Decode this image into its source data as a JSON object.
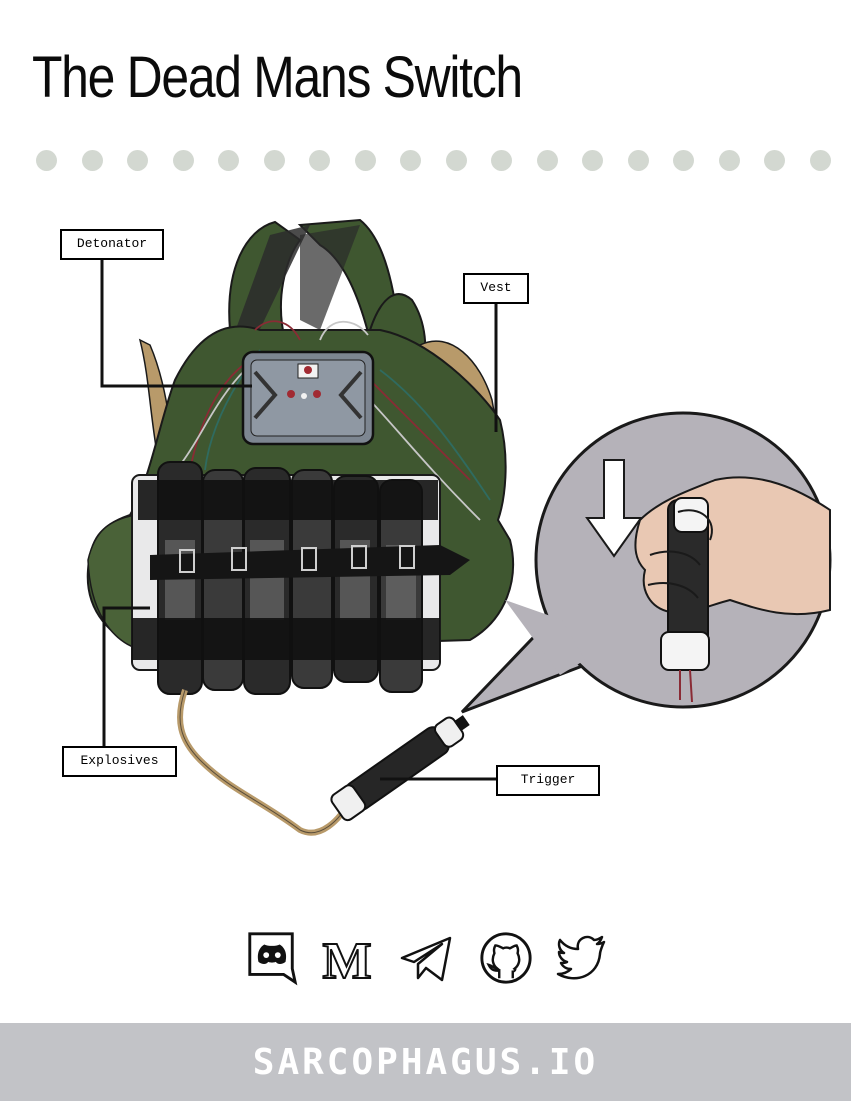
{
  "title": "The Dead Mans Switch",
  "colors": {
    "dot": "#d3d8d1",
    "vest": "#3f5730",
    "footer": "#c2c3c7",
    "bubble": "#b5b2b9"
  },
  "labels": {
    "detonator": "Detonator",
    "vest": "Vest",
    "explosives": "Explosives",
    "trigger": "Trigger"
  },
  "social": [
    {
      "name": "discord-icon"
    },
    {
      "name": "medium-icon"
    },
    {
      "name": "telegram-icon"
    },
    {
      "name": "github-icon"
    },
    {
      "name": "twitter-icon"
    }
  ],
  "footer": {
    "brand": "SARCOPHAGUS.IO"
  }
}
